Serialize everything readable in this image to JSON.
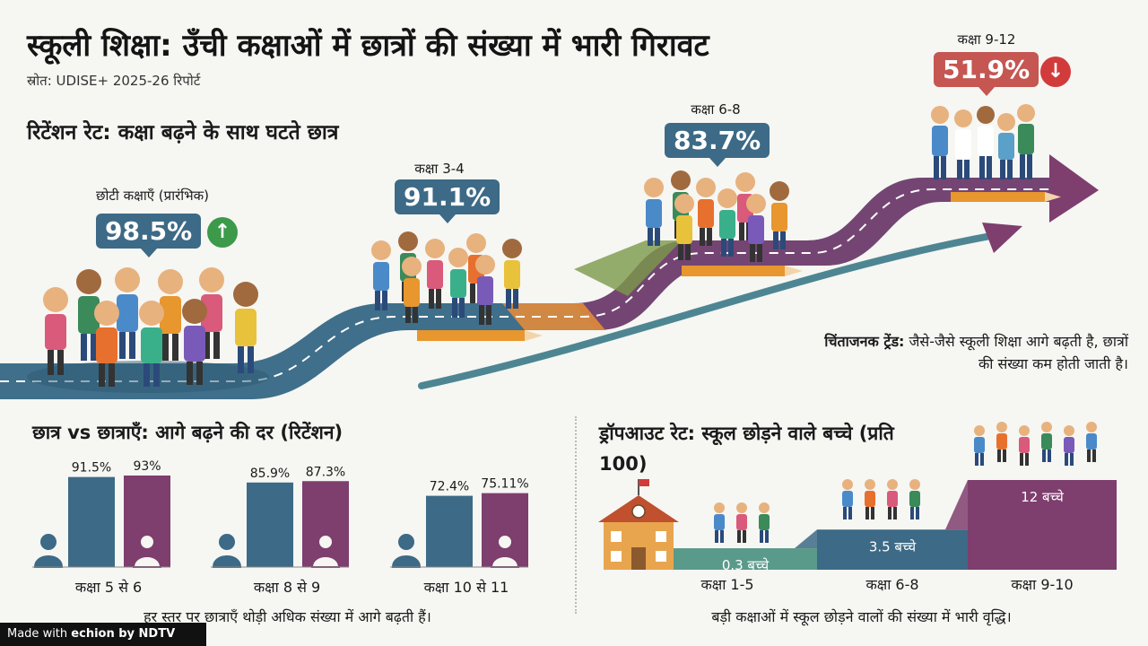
{
  "header": {
    "title": "स्कूली शिक्षा: उँची कक्षाओं में छात्रों की संख्या में भारी गिरावट",
    "source": "स्रोत: UDISE+ 2025-26 रिपोर्ट",
    "credit_prefix": "Made with",
    "credit_brand": "echion by NDTV"
  },
  "retention_section": {
    "heading": "रिटेंशन रेट: कक्षा बढ़ने के साथ घटते छात्र",
    "trend_note_bold": "चिंताजनक ट्रेंड:",
    "trend_note_rest": "जैसे-जैसे स्कूली शिक्षा आगे बढ़ती है, छात्रों की संख्या कम होती जाती है।"
  },
  "gender_section": {
    "heading": "छात्र vs छात्राएँ: आगे बढ़ने की दर (रिटेंशन)",
    "footer": "हर स्तर पर छात्राएँ थोड़ी अधिक संख्या में आगे बढ़ती हैं।"
  },
  "dropout_section": {
    "heading": "ड्रॉपआउट रेट: स्कूल छोड़ने वाले बच्चे (प्रति 100)",
    "footer": "बड़ी कक्षाओं में स्कूल छोड़ने वालों की संख्या में भारी वृद्धि।"
  },
  "colors": {
    "boys": "#3d6a86",
    "girls": "#7e3e6e",
    "dropout_low": "#5a9a8a",
    "dropout_mid": "#3d6a86",
    "dropout_high": "#7e3e6e",
    "up_badge": "#3c9a4a",
    "down_badge": "#d23b3b"
  },
  "chart_data": [
    {
      "type": "line",
      "categories": [
        "छोटी कक्षाएँ (प्रारंभिक)",
        "कक्षा 3-4",
        "कक्षा 6-8",
        "कक्षा 9-12"
      ],
      "values": [
        98.5,
        91.1,
        83.7,
        51.9
      ],
      "value_labels": [
        "98.5%",
        "91.1%",
        "83.7%",
        "51.9%"
      ],
      "badges": [
        "up-arrow-icon",
        "",
        "",
        "down-arrow-icon"
      ]
    },
    {
      "type": "bar",
      "categories": [
        "कक्षा 5 से 6",
        "कक्षा 8 से 9",
        "कक्षा 10 से 11"
      ],
      "series": [
        {
          "values": [
            91.5,
            85.9,
            72.4
          ],
          "labels": [
            "91.5%",
            "85.9%",
            "72.4%"
          ],
          "icon": "boy-icon"
        },
        {
          "values": [
            93,
            87.3,
            75.11
          ],
          "labels": [
            "93%",
            "87.3%",
            "75.11%"
          ],
          "icon": "girl-icon"
        }
      ]
    },
    {
      "type": "bar",
      "categories": [
        "कक्षा 1-5",
        "कक्षा 6-8",
        "कक्षा 9-10"
      ],
      "values": [
        0.3,
        3.5,
        12
      ],
      "value_labels": [
        "0.3 बच्चे",
        "3.5 बच्चे",
        "12 बच्चे"
      ]
    }
  ]
}
